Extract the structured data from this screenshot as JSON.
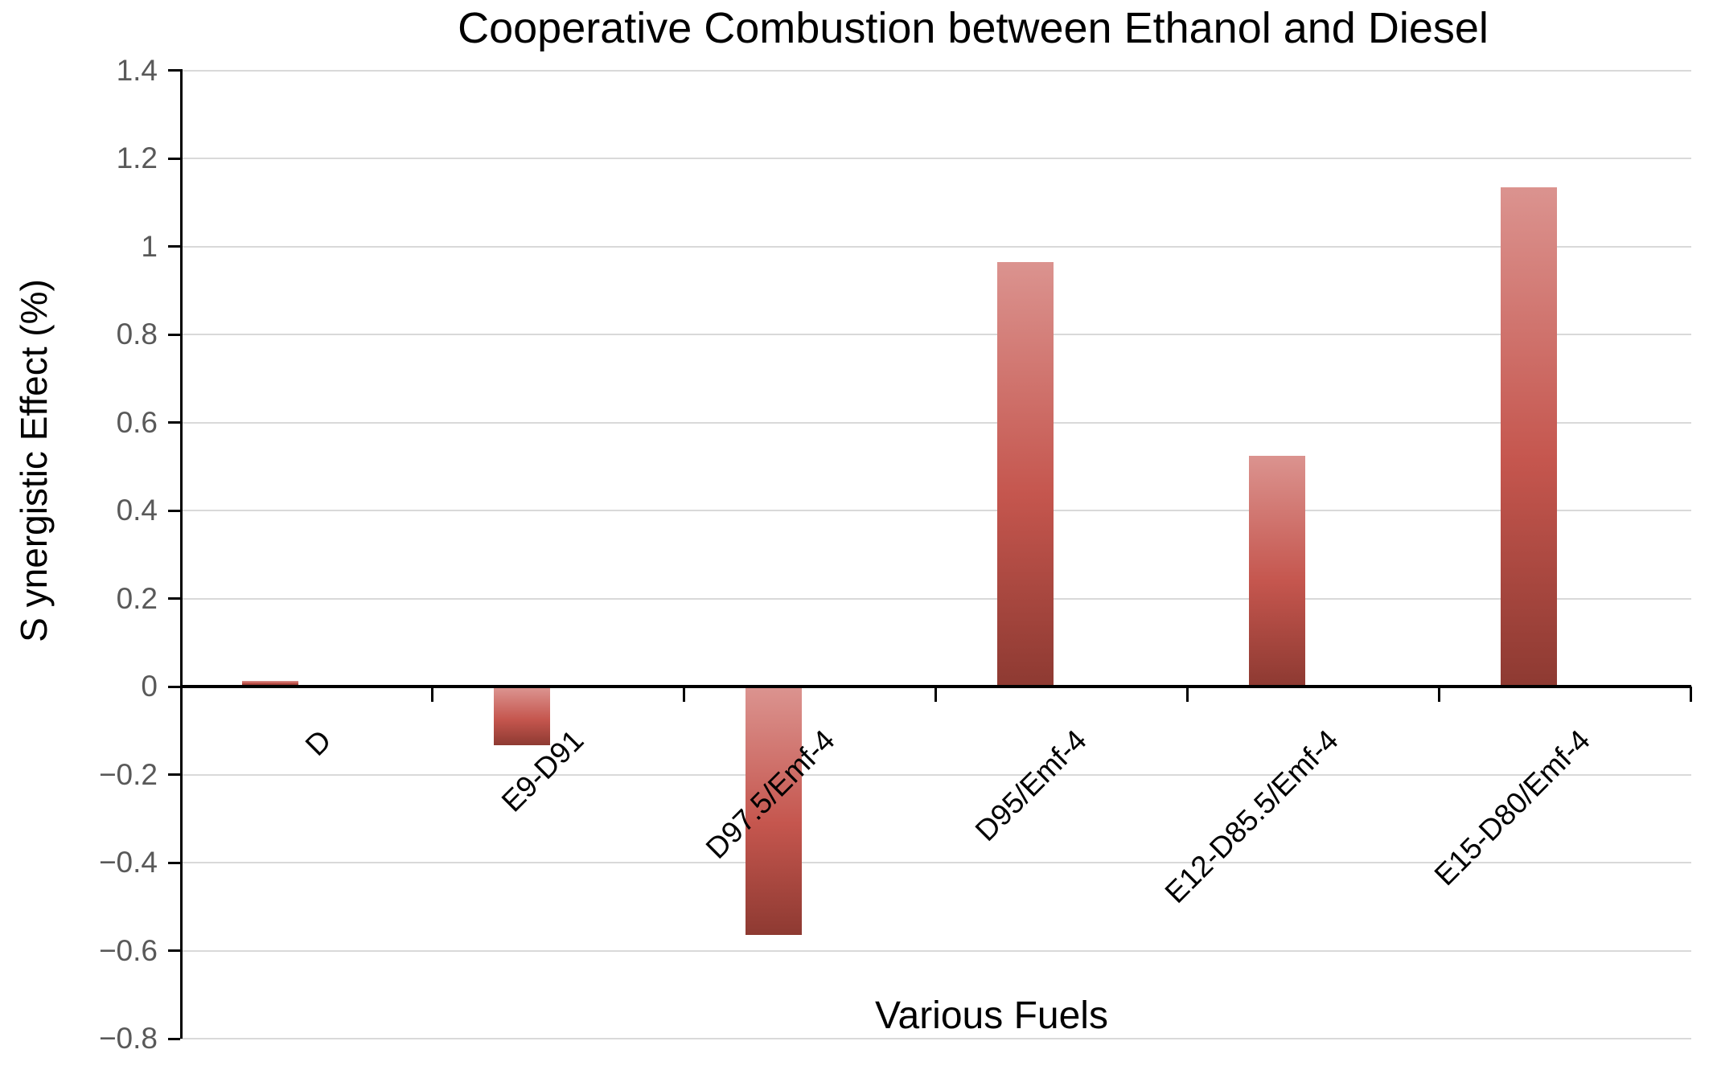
{
  "chart_data": {
    "type": "bar",
    "title": "Cooperative Combustion between Ethanol and Diesel",
    "xlabel": "Various Fuels",
    "ylabel": "S ynergistic Effect (%)",
    "categories": [
      "D",
      "E9-D91",
      "D97.5/Emf-4",
      "D95/Emf-4",
      "E12-D85.5/Emf-4",
      "E15-D80/Emf-4"
    ],
    "values": [
      0.01,
      -0.13,
      -0.56,
      0.96,
      0.52,
      1.13
    ],
    "ylim": [
      -0.8,
      1.4
    ],
    "yticks": [
      {
        "label": "1.4",
        "value": 1.4
      },
      {
        "label": "1.2",
        "value": 1.2
      },
      {
        "label": "1",
        "value": 1.0
      },
      {
        "label": "0.8",
        "value": 0.8
      },
      {
        "label": "0.6",
        "value": 0.6
      },
      {
        "label": "0.4",
        "value": 0.4
      },
      {
        "label": "0.2",
        "value": 0.2
      },
      {
        "label": "0",
        "value": 0.0
      },
      {
        "label": "−0.2",
        "value": -0.2
      },
      {
        "label": "−0.4",
        "value": -0.4
      },
      {
        "label": "−0.6",
        "value": -0.6
      },
      {
        "label": "−0.8",
        "value": -0.8
      }
    ],
    "grid": true,
    "legend": "none",
    "colors": {
      "bar_gradient_top": "#db938f",
      "bar_gradient_mid": "#c5564e",
      "bar_gradient_bottom": "#8e3a32",
      "gridline": "#d9d9d9",
      "axis_line": "#000000",
      "tick_label": "#595959",
      "text": "#000000"
    }
  }
}
